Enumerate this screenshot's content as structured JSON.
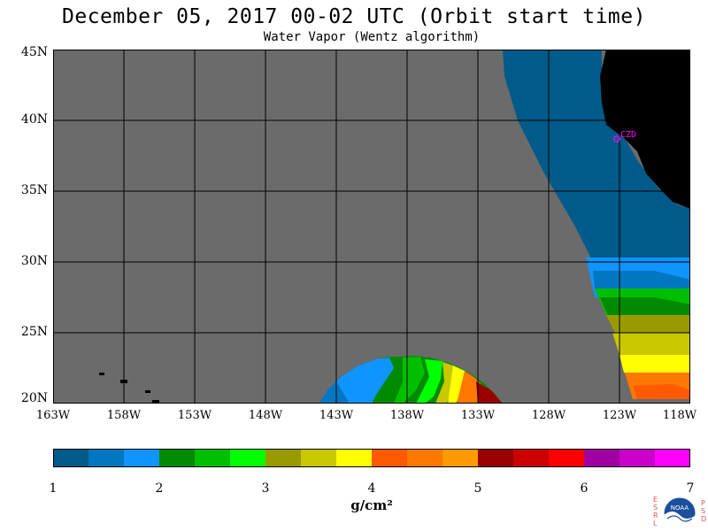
{
  "header": {
    "title": "December 05, 2017  00-02 UTC  (Orbit start time)",
    "subtitle": "Water Vapor (Wentz algorithm)"
  },
  "map": {
    "lat_labels": [
      "45N",
      "40N",
      "35N",
      "30N",
      "25N",
      "20N"
    ],
    "lon_labels": [
      "163W",
      "158W",
      "153W",
      "148W",
      "143W",
      "138W",
      "133W",
      "128W",
      "123W",
      "118W"
    ],
    "station_label": "CZD",
    "colors": {
      "no_data": "#6b6b6b",
      "land": "#000000",
      "grid": "#000000",
      "station": "#ff00ff"
    }
  },
  "colorbar": {
    "tick_labels": [
      "1",
      "2",
      "3",
      "4",
      "5",
      "6",
      "7"
    ],
    "units": "g/cm²",
    "colors": [
      "#005a8a",
      "#0077c0",
      "#1094ff",
      "#008a00",
      "#00bf00",
      "#00ff00",
      "#9a9a00",
      "#c8c800",
      "#ffff00",
      "#ff5a00",
      "#ff7800",
      "#ff9a00",
      "#9a0000",
      "#cc0000",
      "#ff0000",
      "#a000a0",
      "#cc00cc",
      "#ff00ff"
    ]
  },
  "logo": {
    "left_letters": [
      "E",
      "S",
      "R",
      "L"
    ],
    "right_letters": [
      "P",
      "S",
      "D"
    ],
    "center_text": "NOAA"
  }
}
